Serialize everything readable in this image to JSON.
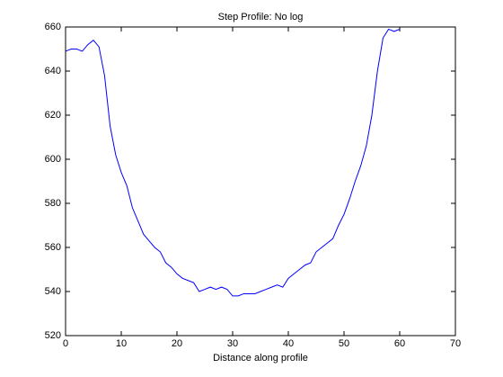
{
  "chart_data": {
    "type": "line",
    "title": "Step Profile: No log",
    "x_label": "Distance along profile",
    "x": [
      0,
      1,
      2,
      3,
      4,
      5,
      6,
      7,
      8,
      9,
      10,
      11,
      12,
      13,
      14,
      15,
      16,
      17,
      18,
      19,
      20,
      21,
      22,
      23,
      24,
      25,
      26,
      27,
      28,
      29,
      30,
      31,
      32,
      33,
      34,
      35,
      36,
      37,
      38,
      39,
      40,
      41,
      42,
      43,
      44,
      45,
      46,
      47,
      48,
      49,
      50,
      51,
      52,
      53,
      54,
      55,
      56,
      57,
      58,
      59,
      60
    ],
    "series": [
      {
        "color": "#0000ff",
        "values": [
          649,
          650,
          650,
          649,
          652,
          654,
          651,
          638,
          615,
          602,
          594,
          588,
          578,
          572,
          566,
          563,
          560,
          558,
          553,
          551,
          548,
          546,
          545,
          544,
          540,
          541,
          542,
          541,
          542,
          541,
          538,
          538,
          539,
          539,
          539,
          540,
          541,
          542,
          543,
          542,
          546,
          548,
          550,
          552,
          553,
          558,
          560,
          562,
          564,
          570,
          575,
          582,
          590,
          597,
          606,
          620,
          640,
          655,
          659,
          658,
          659
        ]
      }
    ],
    "xlim": [
      0,
      70
    ],
    "xticks": [
      0,
      10,
      20,
      30,
      40,
      50,
      60,
      70
    ],
    "ylim": [
      520,
      660
    ],
    "yticks": [
      520,
      540,
      560,
      580,
      600,
      620,
      640,
      660
    ]
  }
}
